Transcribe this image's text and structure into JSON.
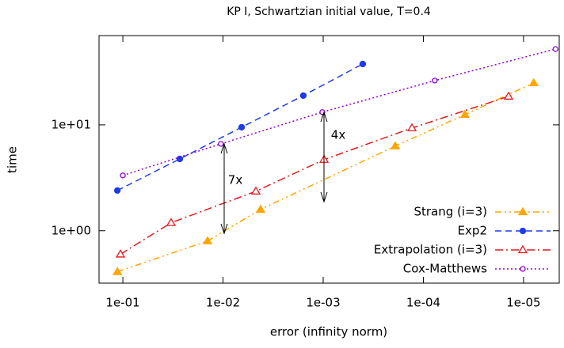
{
  "chart_data": {
    "type": "line",
    "title": "KP I, Schwartzian initial value, T=0.4",
    "x_label": "error (infinity norm)",
    "y_label": "time",
    "xscale": "log",
    "yscale": "log",
    "xlim": [
      0.173,
      4.4e-06
    ],
    "ylim": [
      0.32,
      69.7
    ],
    "xticks": [
      {
        "value": 0.1,
        "label": "1e-01"
      },
      {
        "value": 0.01,
        "label": "1e-02"
      },
      {
        "value": 0.001,
        "label": "1e-03"
      },
      {
        "value": 0.0001,
        "label": "1e-04"
      },
      {
        "value": 1e-05,
        "label": "1e-05"
      }
    ],
    "yticks": [
      {
        "value": 1,
        "label": "1e+00"
      },
      {
        "value": 10,
        "label": "1e+01"
      }
    ],
    "legend": "lower right",
    "series": [
      {
        "name": "Strang (i=3)",
        "color": "#ffa500",
        "dash": "8,4,2,4,2,4",
        "marker": "filled-triangle",
        "x": [
          0.1135,
          0.01426,
          0.00422,
          0.000191,
          3.85e-05,
          7.9e-06
        ],
        "values": [
          0.41,
          0.8,
          1.59,
          6.3,
          12.5,
          24.9
        ]
      },
      {
        "name": "Exp2",
        "color": "#1f3be6",
        "dash": "8,5",
        "marker": "filled-circle",
        "x": [
          0.1135,
          0.027,
          0.00652,
          0.00158,
          0.000403
        ],
        "values": [
          2.4,
          4.77,
          9.5,
          18.9,
          37.6
        ]
      },
      {
        "name": "Extrapolation (i=3)",
        "color": "#e41a1c",
        "dash": "10,4,2,4",
        "marker": "open-triangle",
        "x": [
          0.1057,
          0.033,
          0.0047,
          0.00098,
          0.00013,
          1.41e-05
        ],
        "values": [
          0.6,
          1.19,
          2.36,
          4.7,
          9.34,
          18.6
        ]
      },
      {
        "name": "Cox-Matthews",
        "color": "#9400d3",
        "dash": "2,3",
        "marker": "open-circle",
        "x": [
          0.1,
          0.0105,
          0.00102,
          7.7e-05,
          4.8e-06
        ],
        "values": [
          3.33,
          6.62,
          13.2,
          26.2,
          52
        ]
      }
    ],
    "annotations": [
      "7x",
      "4x"
    ]
  }
}
